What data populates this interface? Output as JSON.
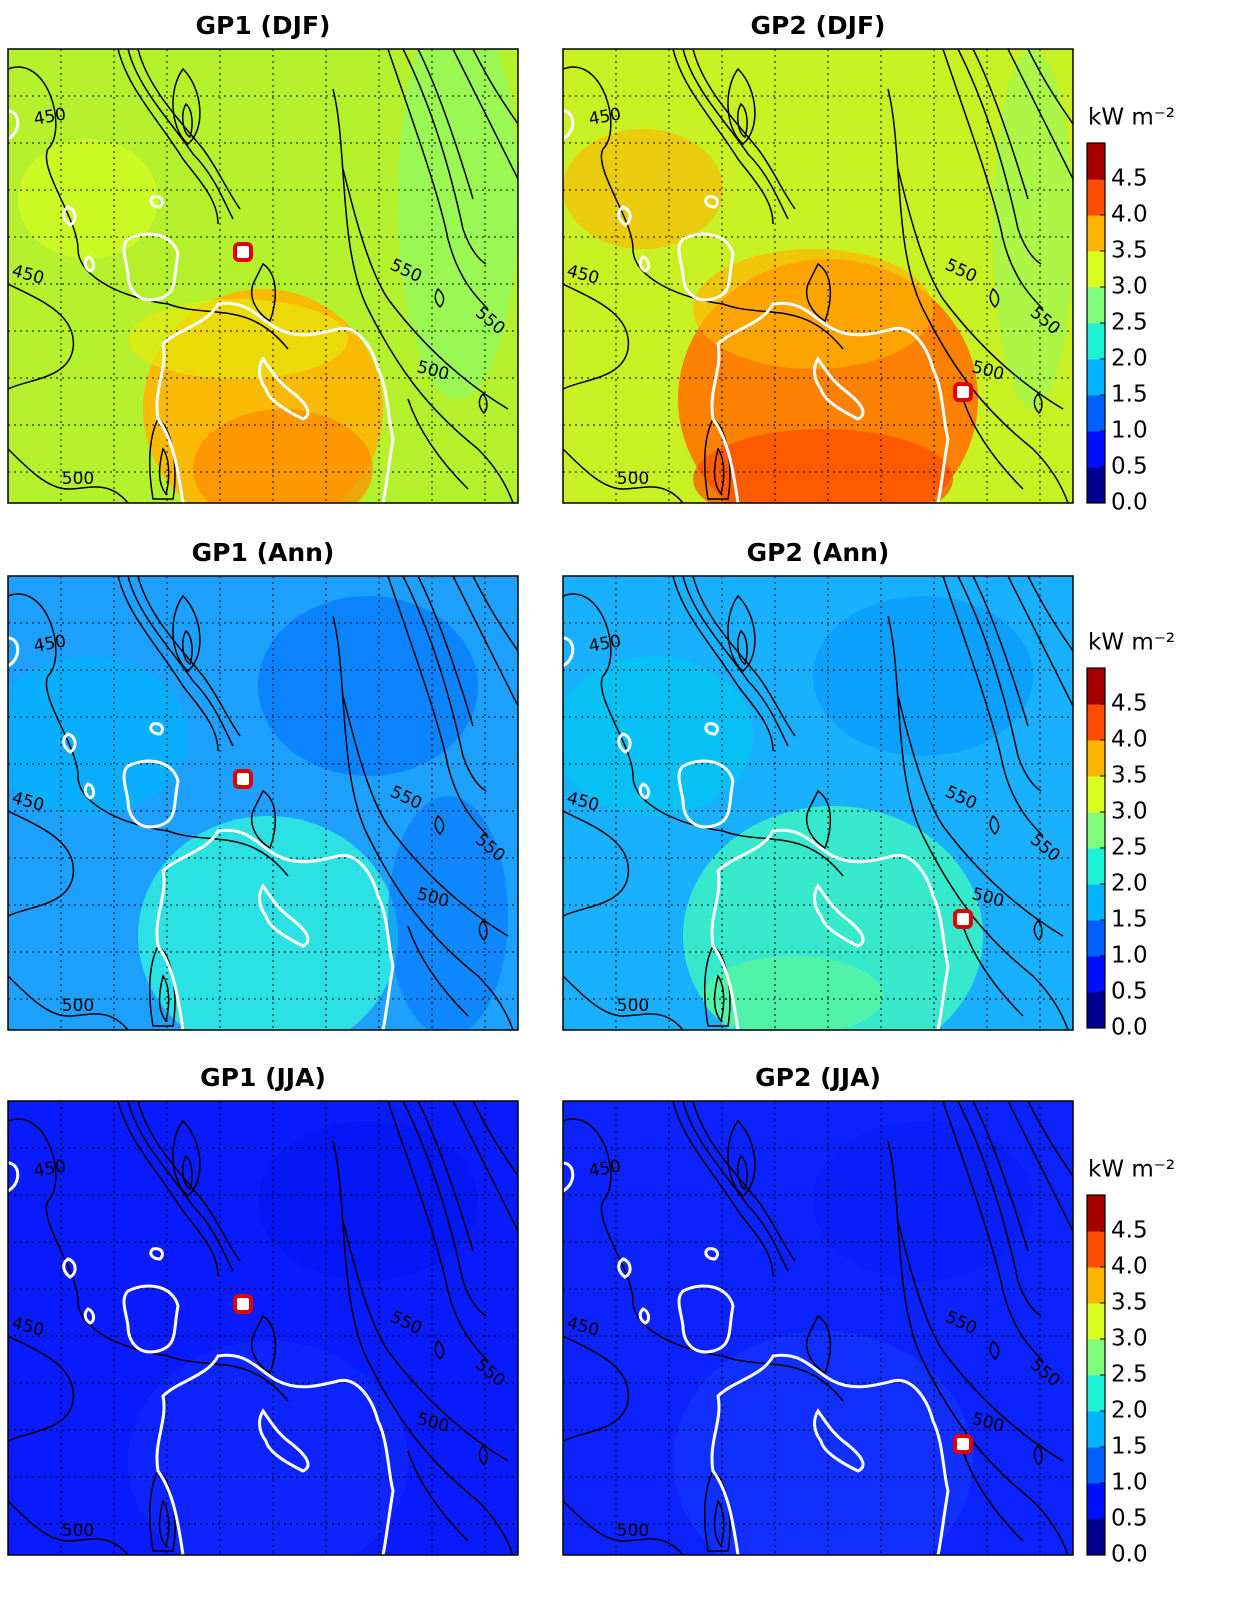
{
  "panels": [
    {
      "title": "GP1 (DJF)",
      "contour_labels": [
        "450",
        "450",
        "500",
        "500",
        "550",
        "550"
      ]
    },
    {
      "title": "GP2 (DJF)",
      "contour_labels": [
        "450",
        "450",
        "500",
        "500",
        "550",
        "550"
      ]
    },
    {
      "title": "GP1 (Ann)",
      "contour_labels": [
        "450",
        "450",
        "500",
        "500",
        "550",
        "550"
      ]
    },
    {
      "title": "GP2 (Ann)",
      "contour_labels": [
        "450",
        "450",
        "500",
        "500",
        "550",
        "550"
      ]
    },
    {
      "title": "GP1 (JJA)",
      "contour_labels": [
        "450",
        "450",
        "500",
        "500",
        "550",
        "550"
      ]
    },
    {
      "title": "GP2 (JJA)",
      "contour_labels": [
        "450",
        "450",
        "500",
        "500",
        "550",
        "550"
      ]
    }
  ],
  "colorbars": [
    {
      "label": "kW m⁻²",
      "lim": [
        0,
        5
      ],
      "colors": [
        "#00008f",
        "#0010ff",
        "#0060ff",
        "#00b4ff",
        "#1cf2d6",
        "#80ff7c",
        "#d8ff20",
        "#ffb400",
        "#ff4c00",
        "#a80000"
      ],
      "ticks": [
        {
          "value": 0,
          "label": "0.0"
        },
        {
          "value": 0.5,
          "label": "0.5"
        },
        {
          "value": 1,
          "label": "1.0"
        },
        {
          "value": 1.5,
          "label": "1.5"
        },
        {
          "value": 2,
          "label": "2.0"
        },
        {
          "value": 2.5,
          "label": "2.5"
        },
        {
          "value": 3,
          "label": "3.0"
        },
        {
          "value": 3.5,
          "label": "3.5"
        },
        {
          "value": 4,
          "label": "4.0"
        },
        {
          "value": 4.5,
          "label": "4.5"
        }
      ]
    },
    {
      "label": "kW m⁻²",
      "lim": [
        0,
        5
      ],
      "colors": [
        "#00008f",
        "#0010ff",
        "#0060ff",
        "#00b4ff",
        "#1cf2d6",
        "#80ff7c",
        "#d8ff20",
        "#ffb400",
        "#ff4c00",
        "#a80000"
      ],
      "ticks": [
        {
          "value": 0,
          "label": "0.0"
        },
        {
          "value": 0.5,
          "label": "0.5"
        },
        {
          "value": 1,
          "label": "1.0"
        },
        {
          "value": 1.5,
          "label": "1.5"
        },
        {
          "value": 2,
          "label": "2.0"
        },
        {
          "value": 2.5,
          "label": "2.5"
        },
        {
          "value": 3,
          "label": "3.0"
        },
        {
          "value": 3.5,
          "label": "3.5"
        },
        {
          "value": 4,
          "label": "4.0"
        },
        {
          "value": 4.5,
          "label": "4.5"
        }
      ]
    },
    {
      "label": "kW m⁻²",
      "lim": [
        0,
        5
      ],
      "colors": [
        "#00008f",
        "#0010ff",
        "#0060ff",
        "#00b4ff",
        "#1cf2d6",
        "#80ff7c",
        "#d8ff20",
        "#ffb400",
        "#ff4c00",
        "#a80000"
      ],
      "ticks": [
        {
          "value": 0,
          "label": "0.0"
        },
        {
          "value": 0.5,
          "label": "0.5"
        },
        {
          "value": 1,
          "label": "1.0"
        },
        {
          "value": 1.5,
          "label": "1.5"
        },
        {
          "value": 2,
          "label": "2.0"
        },
        {
          "value": 2.5,
          "label": "2.5"
        },
        {
          "value": 3,
          "label": "3.0"
        },
        {
          "value": 3.5,
          "label": "3.5"
        },
        {
          "value": 4,
          "label": "4.0"
        },
        {
          "value": 4.5,
          "label": "4.5"
        }
      ]
    }
  ]
}
